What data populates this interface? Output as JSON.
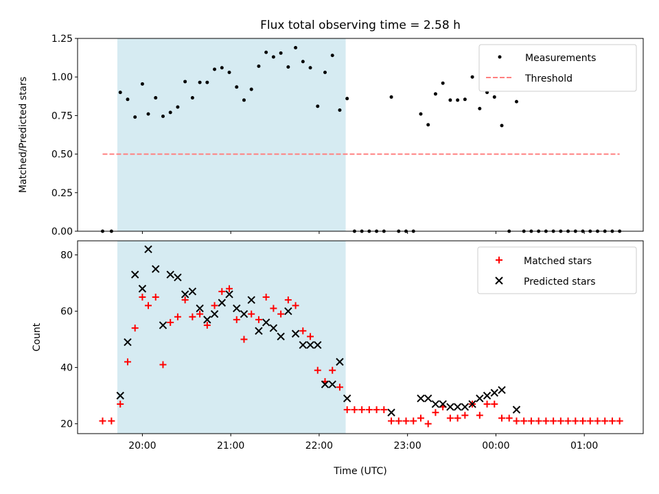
{
  "chart_data": [
    {
      "type": "scatter",
      "title": "Flux total observing time = 2.58 h",
      "xlabel": "",
      "ylabel": "Matched/Predicted stars",
      "ylim": [
        0,
        1.25
      ],
      "yticks": [
        "0.00",
        "0.25",
        "0.50",
        "0.75",
        "1.00",
        "1.25"
      ],
      "legend": {
        "position": "top-right",
        "entries": [
          "Measurements",
          "Threshold"
        ]
      },
      "threshold": {
        "name": "Threshold",
        "value": 0.5,
        "x_start": "19:33",
        "x_end": "01:24",
        "color": "#ff7f7f"
      },
      "series": [
        {
          "name": "Measurements",
          "color": "#000000",
          "points": [
            [
              "19:33",
              0.0
            ],
            [
              "19:39",
              0.0
            ],
            [
              "19:45",
              0.9
            ],
            [
              "19:50",
              0.855
            ],
            [
              "19:55",
              0.74
            ],
            [
              "20:00",
              0.955
            ],
            [
              "20:04",
              0.76
            ],
            [
              "20:09",
              0.865
            ],
            [
              "20:14",
              0.745
            ],
            [
              "20:19",
              0.77
            ],
            [
              "20:24",
              0.805
            ],
            [
              "20:29",
              0.97
            ],
            [
              "20:34",
              0.865
            ],
            [
              "20:39",
              0.965
            ],
            [
              "20:44",
              0.965
            ],
            [
              "20:49",
              1.05
            ],
            [
              "20:54",
              1.06
            ],
            [
              "20:59",
              1.03
            ],
            [
              "21:04",
              0.935
            ],
            [
              "21:09",
              0.85
            ],
            [
              "21:14",
              0.92
            ],
            [
              "21:19",
              1.07
            ],
            [
              "21:24",
              1.16
            ],
            [
              "21:29",
              1.13
            ],
            [
              "21:34",
              1.155
            ],
            [
              "21:39",
              1.065
            ],
            [
              "21:44",
              1.19
            ],
            [
              "21:49",
              1.1
            ],
            [
              "21:54",
              1.06
            ],
            [
              "21:59",
              0.81
            ],
            [
              "22:04",
              1.03
            ],
            [
              "22:09",
              1.14
            ],
            [
              "22:14",
              0.785
            ],
            [
              "22:19",
              0.86
            ],
            [
              "22:24",
              0.0
            ],
            [
              "22:29",
              0.0
            ],
            [
              "22:34",
              0.0
            ],
            [
              "22:39",
              0.0
            ],
            [
              "22:44",
              0.0
            ],
            [
              "22:49",
              0.87
            ],
            [
              "22:54",
              0.0
            ],
            [
              "22:59",
              0.0
            ],
            [
              "23:04",
              0.0
            ],
            [
              "23:09",
              0.76
            ],
            [
              "23:14",
              0.69
            ],
            [
              "23:19",
              0.89
            ],
            [
              "23:24",
              0.96
            ],
            [
              "23:29",
              0.85
            ],
            [
              "23:34",
              0.85
            ],
            [
              "23:39",
              0.855
            ],
            [
              "23:44",
              1.0
            ],
            [
              "23:49",
              0.795
            ],
            [
              "23:54",
              0.9
            ],
            [
              "23:59",
              0.87
            ],
            [
              "00:04",
              0.685
            ],
            [
              "00:09",
              0.0
            ],
            [
              "00:14",
              0.84
            ],
            [
              "00:19",
              0.0
            ],
            [
              "00:24",
              0.0
            ],
            [
              "00:29",
              0.0
            ],
            [
              "00:34",
              0.0
            ],
            [
              "00:39",
              0.0
            ],
            [
              "00:44",
              0.0
            ],
            [
              "00:49",
              0.0
            ],
            [
              "00:54",
              0.0
            ],
            [
              "00:59",
              0.0
            ],
            [
              "01:04",
              0.0
            ],
            [
              "01:09",
              0.0
            ],
            [
              "01:14",
              0.0
            ],
            [
              "01:19",
              0.0
            ],
            [
              "01:24",
              0.0
            ]
          ]
        }
      ],
      "shaded_region": {
        "start": "19:43",
        "end": "22:18",
        "color": "#add8e6"
      }
    },
    {
      "type": "scatter",
      "title": "",
      "xlabel": "Time (UTC)",
      "ylabel": "Count",
      "ylim": [
        16.5,
        85
      ],
      "yticks": [
        "20",
        "40",
        "60",
        "80"
      ],
      "xticks": [
        "20:00",
        "21:00",
        "22:00",
        "23:00",
        "00:00",
        "01:00"
      ],
      "legend": {
        "position": "top-right",
        "entries": [
          "Matched stars",
          "Predicted stars"
        ]
      },
      "series": [
        {
          "name": "Matched stars",
          "marker": "+",
          "color": "#ff0000",
          "points": [
            [
              "19:33",
              21
            ],
            [
              "19:39",
              21
            ],
            [
              "19:45",
              27
            ],
            [
              "19:50",
              42
            ],
            [
              "19:55",
              54
            ],
            [
              "20:00",
              65
            ],
            [
              "20:04",
              62
            ],
            [
              "20:09",
              65
            ],
            [
              "20:14",
              41
            ],
            [
              "20:19",
              56
            ],
            [
              "20:24",
              58
            ],
            [
              "20:29",
              64
            ],
            [
              "20:34",
              58
            ],
            [
              "20:39",
              59
            ],
            [
              "20:44",
              55
            ],
            [
              "20:49",
              62
            ],
            [
              "20:54",
              67
            ],
            [
              "20:59",
              68
            ],
            [
              "21:04",
              57
            ],
            [
              "21:09",
              50
            ],
            [
              "21:14",
              59
            ],
            [
              "21:19",
              57
            ],
            [
              "21:24",
              65
            ],
            [
              "21:29",
              61
            ],
            [
              "21:34",
              59
            ],
            [
              "21:39",
              64
            ],
            [
              "21:44",
              62
            ],
            [
              "21:49",
              53
            ],
            [
              "21:54",
              51
            ],
            [
              "21:59",
              39
            ],
            [
              "22:04",
              35
            ],
            [
              "22:09",
              39
            ],
            [
              "22:14",
              33
            ],
            [
              "22:19",
              25
            ],
            [
              "22:24",
              25
            ],
            [
              "22:29",
              25
            ],
            [
              "22:34",
              25
            ],
            [
              "22:39",
              25
            ],
            [
              "22:44",
              25
            ],
            [
              "22:49",
              21
            ],
            [
              "22:54",
              21
            ],
            [
              "22:59",
              21
            ],
            [
              "23:04",
              21
            ],
            [
              "23:09",
              22
            ],
            [
              "23:14",
              20
            ],
            [
              "23:19",
              24
            ],
            [
              "23:24",
              26
            ],
            [
              "23:29",
              22
            ],
            [
              "23:34",
              22
            ],
            [
              "23:39",
              23
            ],
            [
              "23:44",
              27
            ],
            [
              "23:49",
              23
            ],
            [
              "23:54",
              27
            ],
            [
              "23:59",
              27
            ],
            [
              "00:04",
              22
            ],
            [
              "00:09",
              22
            ],
            [
              "00:14",
              21
            ],
            [
              "00:19",
              21
            ],
            [
              "00:24",
              21
            ],
            [
              "00:29",
              21
            ],
            [
              "00:34",
              21
            ],
            [
              "00:39",
              21
            ],
            [
              "00:44",
              21
            ],
            [
              "00:49",
              21
            ],
            [
              "00:54",
              21
            ],
            [
              "00:59",
              21
            ],
            [
              "01:04",
              21
            ],
            [
              "01:09",
              21
            ],
            [
              "01:14",
              21
            ],
            [
              "01:19",
              21
            ],
            [
              "01:24",
              21
            ]
          ]
        },
        {
          "name": "Predicted stars",
          "marker": "x",
          "color": "#000000",
          "points": [
            [
              "19:45",
              30
            ],
            [
              "19:50",
              49
            ],
            [
              "19:55",
              73
            ],
            [
              "20:00",
              68
            ],
            [
              "20:04",
              82
            ],
            [
              "20:09",
              75
            ],
            [
              "20:14",
              55
            ],
            [
              "20:19",
              73
            ],
            [
              "20:24",
              72
            ],
            [
              "20:29",
              66
            ],
            [
              "20:34",
              67
            ],
            [
              "20:39",
              61
            ],
            [
              "20:44",
              57
            ],
            [
              "20:49",
              59
            ],
            [
              "20:54",
              63
            ],
            [
              "20:59",
              66
            ],
            [
              "21:04",
              61
            ],
            [
              "21:09",
              59
            ],
            [
              "21:14",
              64
            ],
            [
              "21:19",
              53
            ],
            [
              "21:24",
              56
            ],
            [
              "21:29",
              54
            ],
            [
              "21:34",
              51
            ],
            [
              "21:39",
              60
            ],
            [
              "21:44",
              52
            ],
            [
              "21:49",
              48
            ],
            [
              "21:54",
              48
            ],
            [
              "21:59",
              48
            ],
            [
              "22:04",
              34
            ],
            [
              "22:09",
              34
            ],
            [
              "22:14",
              42
            ],
            [
              "22:19",
              29
            ],
            [
              "22:49",
              24
            ],
            [
              "23:09",
              29
            ],
            [
              "23:14",
              29
            ],
            [
              "23:19",
              27
            ],
            [
              "23:24",
              27
            ],
            [
              "23:29",
              26
            ],
            [
              "23:34",
              26
            ],
            [
              "23:39",
              26
            ],
            [
              "23:44",
              27
            ],
            [
              "23:49",
              29
            ],
            [
              "23:54",
              30
            ],
            [
              "23:59",
              31
            ],
            [
              "00:04",
              32
            ],
            [
              "00:14",
              25
            ]
          ]
        }
      ],
      "shaded_region": {
        "start": "19:43",
        "end": "22:18",
        "color": "#add8e6"
      }
    }
  ]
}
